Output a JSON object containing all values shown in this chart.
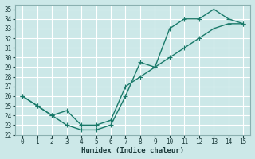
{
  "xlabel": "Humidex (Indice chaleur)",
  "background_color": "#cce8e8",
  "grid_color": "#ffffff",
  "line_color": "#1a7a6a",
  "x_line1": [
    0,
    1,
    2,
    3,
    4,
    5,
    6,
    7,
    8,
    9,
    10,
    11,
    12,
    13,
    14,
    15
  ],
  "y_line1": [
    26,
    25,
    24,
    23,
    22.5,
    22.5,
    23,
    26,
    29.5,
    29,
    33,
    34,
    34,
    35,
    34,
    33.5
  ],
  "x_line2": [
    0,
    1,
    2,
    3,
    4,
    5,
    6,
    7,
    8,
    9,
    10,
    11,
    12,
    13,
    14,
    15
  ],
  "y_line2": [
    26,
    25,
    24,
    24.5,
    23,
    23,
    23.5,
    27,
    28,
    29,
    30,
    31,
    32,
    33,
    33.5,
    33.5
  ],
  "ylim": [
    22,
    35.5
  ],
  "xlim": [
    -0.5,
    15.5
  ],
  "yticks": [
    22,
    23,
    24,
    25,
    26,
    27,
    28,
    29,
    30,
    31,
    32,
    33,
    34,
    35
  ],
  "xticks": [
    0,
    1,
    2,
    3,
    4,
    5,
    6,
    7,
    8,
    9,
    10,
    11,
    12,
    13,
    14,
    15
  ],
  "tick_fontsize": 5.5,
  "xlabel_fontsize": 6.5,
  "marker_size": 2.5,
  "linewidth": 1.0
}
